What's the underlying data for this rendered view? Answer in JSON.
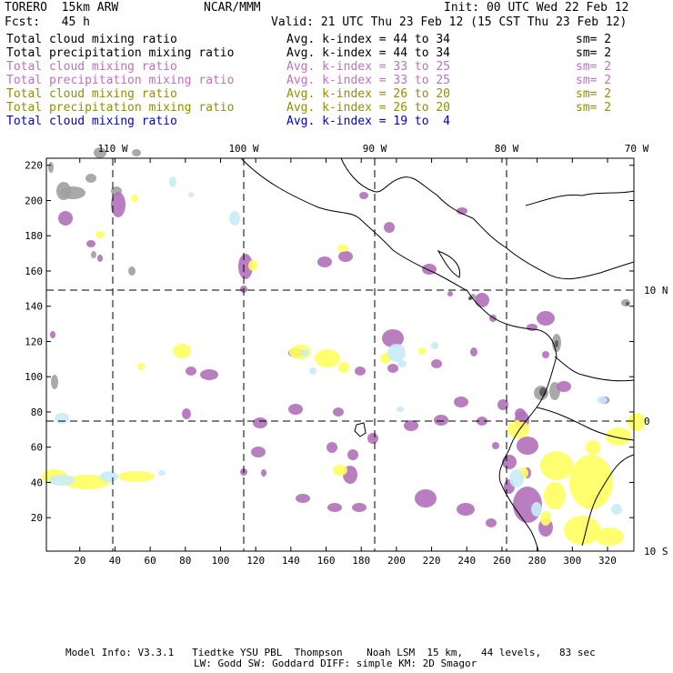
{
  "header": {
    "model": "TORERO  15km ARW",
    "center": "NCAR/MMM",
    "init": "Init: 00 UTC Wed 22 Feb 12",
    "forecast": "Fcst:   45 h",
    "valid": "Valid: 21 UTC Thu 23 Feb 12 (15 CST Thu 23 Feb 12)"
  },
  "legend": [
    {
      "field": "Total cloud mixing ratio",
      "index": "Avg. k-index = 44 to 34",
      "sm": "sm= 2",
      "color": "#000000"
    },
    {
      "field": "Total precipitation mixing ratio",
      "index": "Avg. k-index = 44 to 34",
      "sm": "sm= 2",
      "color": "#000000"
    },
    {
      "field": "Total cloud mixing ratio",
      "index": "Avg. k-index = 33 to 25",
      "sm": "sm= 2",
      "color": "#c070c0"
    },
    {
      "field": "Total precipitation mixing ratio",
      "index": "Avg. k-index = 33 to 25",
      "sm": "sm= 2",
      "color": "#c070c0"
    },
    {
      "field": "Total cloud mixing ratio",
      "index": "Avg. k-index = 26 to 20",
      "sm": "sm= 2",
      "color": "#909000"
    },
    {
      "field": "Total precipitation mixing ratio",
      "index": "Avg. k-index = 26 to 20",
      "sm": "sm= 2",
      "color": "#909000"
    },
    {
      "field": "Total cloud mixing ratio",
      "index": "Avg. k-index = 19 to  4",
      "sm": "",
      "color": "#0000d0"
    }
  ],
  "map": {
    "lon_labels": [
      "110 W",
      "100 W",
      "90 W",
      "80 W",
      "70 W"
    ],
    "lat_labels": [
      "10 N",
      "0",
      "10 S"
    ],
    "x_ticks": [
      "20",
      "40",
      "60",
      "80",
      "100",
      "120",
      "140",
      "160",
      "180",
      "200",
      "220",
      "240",
      "260",
      "280",
      "300",
      "320"
    ],
    "y_ticks": [
      "20",
      "40",
      "60",
      "80",
      "100",
      "120",
      "140",
      "160",
      "180",
      "200",
      "220"
    ],
    "colors": {
      "gray": "#a0a0a0",
      "purple": "#b070b8",
      "yellow": "#ffff60",
      "cyan": "#c8ecf8",
      "coast": "#000000"
    }
  },
  "footer": {
    "line1": "Model Info: V3.3.1   Tiedtke YSU PBL  Thompson    Noah LSM  15 km,   44 levels,   83 sec",
    "line2": "LW: Godd SW: Goddard DIFF: simple KM: 2D Smagor"
  }
}
